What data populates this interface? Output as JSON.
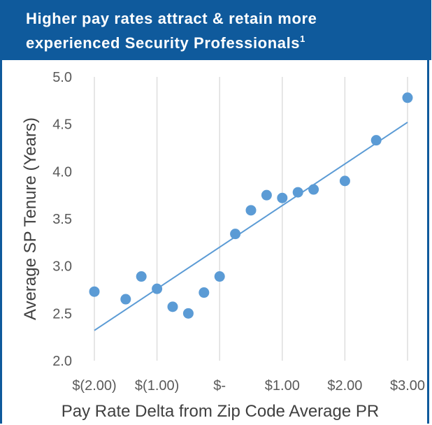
{
  "header": {
    "title_line1": "Higher pay rates attract & retain more",
    "title_line2": "experienced Security Professionals",
    "title_sup": "1"
  },
  "chart_data": {
    "type": "scatter",
    "title": "Higher pay rates attract & retain more experienced Security Professionals",
    "xlabel": "Pay Rate Delta from Zip Code Average PR",
    "ylabel": "Average SP Tenure (Years)",
    "xlim": [
      -2.0,
      3.0
    ],
    "ylim": [
      2.0,
      5.0
    ],
    "x_ticks": [
      {
        "value": -2.0,
        "label": "$(2.00)"
      },
      {
        "value": -1.0,
        "label": "$(1.00)"
      },
      {
        "value": 0.0,
        "label": "$-"
      },
      {
        "value": 1.0,
        "label": "$1.00"
      },
      {
        "value": 2.0,
        "label": "$2.00"
      },
      {
        "value": 3.0,
        "label": "$3.00"
      }
    ],
    "y_ticks": [
      {
        "value": 2.0,
        "label": "2.0"
      },
      {
        "value": 2.5,
        "label": "2.5"
      },
      {
        "value": 3.0,
        "label": "3.0"
      },
      {
        "value": 3.5,
        "label": "3.5"
      },
      {
        "value": 4.0,
        "label": "4.0"
      },
      {
        "value": 4.5,
        "label": "4.5"
      },
      {
        "value": 5.0,
        "label": "5.0"
      }
    ],
    "vertical_grid": true,
    "horizontal_grid": false,
    "points": [
      {
        "x": -2.0,
        "y": 2.73
      },
      {
        "x": -1.5,
        "y": 2.65
      },
      {
        "x": -1.25,
        "y": 2.89
      },
      {
        "x": -1.0,
        "y": 2.76
      },
      {
        "x": -0.75,
        "y": 2.57
      },
      {
        "x": -0.5,
        "y": 2.5
      },
      {
        "x": -0.25,
        "y": 2.72
      },
      {
        "x": 0.0,
        "y": 2.89
      },
      {
        "x": 0.25,
        "y": 3.34
      },
      {
        "x": 0.5,
        "y": 3.59
      },
      {
        "x": 0.75,
        "y": 3.75
      },
      {
        "x": 1.0,
        "y": 3.72
      },
      {
        "x": 1.25,
        "y": 3.78
      },
      {
        "x": 1.5,
        "y": 3.81
      },
      {
        "x": 2.0,
        "y": 3.9
      },
      {
        "x": 2.5,
        "y": 4.33
      },
      {
        "x": 3.0,
        "y": 4.78
      }
    ],
    "trendline": {
      "x": [
        -2.0,
        3.0
      ],
      "y": [
        2.32,
        4.52
      ]
    },
    "colors": {
      "marker": "#5b9bd5",
      "trendline": "#5b9bd5",
      "grid": "#d9d9d9",
      "header": "#0f5a9c"
    }
  }
}
